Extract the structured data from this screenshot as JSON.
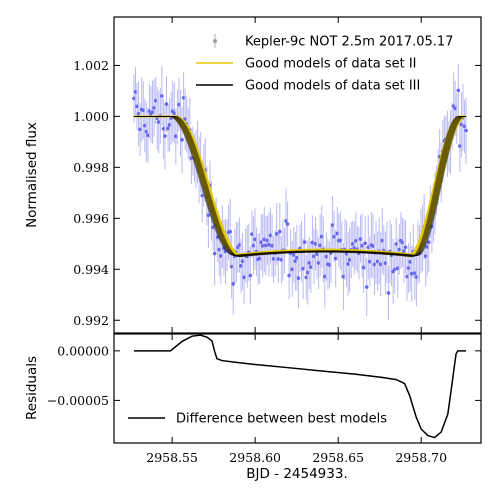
{
  "chart_data": [
    {
      "type": "scatter",
      "panel": "top",
      "title": "",
      "xlabel": "",
      "ylabel": "Normalised flux",
      "xlim": [
        2958.515,
        2958.736
      ],
      "ylim": [
        0.9915,
        1.0039
      ],
      "xticks": [
        2958.55,
        2958.6,
        2958.65,
        2958.7
      ],
      "xtick_labels": [
        "",
        "",
        "",
        ""
      ],
      "yticks": [
        0.992,
        0.994,
        0.996,
        0.998,
        1.0,
        1.002
      ],
      "ytick_labels": [
        "0.992",
        "0.994",
        "0.996",
        "0.998",
        "1.000",
        "1.002"
      ],
      "legend_position": "top-right",
      "grid": false,
      "observation": {
        "name": "Kepler-9c NOT 2.5m 2017.05.17",
        "x_start": 2958.527,
        "x_end": 2958.727,
        "count": 215,
        "typical_error": 0.0011,
        "point_color": "#6666ee",
        "errorbar_color": "#b8b8f4"
      },
      "models": [
        {
          "name": "Good models of data set II",
          "color": "#e6c800",
          "t1": 2958.5506,
          "t2": 2958.5905,
          "t3": 2958.694,
          "t4": 2958.725,
          "depth": 0.00545,
          "tilt": 0.0002
        },
        {
          "name": "Good models of data set III",
          "color": "#000000",
          "t1": 2958.55,
          "t2": 2958.589,
          "t3": 2958.696,
          "t4": 2958.7242,
          "depth": 0.00548,
          "tilt": 0.00018
        }
      ]
    },
    {
      "type": "line",
      "panel": "bottom",
      "title": "",
      "xlabel": "BJD - 2454933.",
      "ylabel": "Residuals",
      "xlim": [
        2958.515,
        2958.736
      ],
      "ylim": [
        -9.3e-05,
        1.7e-05
      ],
      "xticks": [
        2958.55,
        2958.6,
        2958.65,
        2958.7
      ],
      "xtick_labels": [
        "2958.55",
        "2958.60",
        "2958.65",
        "2958.70"
      ],
      "yticks": [
        0.0,
        -5e-05
      ],
      "ytick_labels": [
        "0.00000",
        "−0.00005"
      ],
      "legend_position": "bottom-left",
      "grid": false,
      "series": [
        {
          "name": "Difference between best models",
          "color": "#000000",
          "x": [
            2958.527,
            2958.549,
            2958.556,
            2958.562,
            2958.567,
            2958.571,
            2958.574,
            2958.5755,
            2958.577,
            2958.58,
            2958.59,
            2958.6,
            2958.62,
            2958.64,
            2958.66,
            2958.675,
            2958.685,
            2958.69,
            2958.693,
            2958.697,
            2958.7,
            2958.704,
            2958.708,
            2958.712,
            2958.716,
            2958.718,
            2958.72,
            2958.721,
            2958.722,
            2958.724,
            2958.727
          ],
          "y": [
            0.0,
            0.0,
            9.5e-06,
            1.48e-05,
            1.58e-05,
            1.38e-05,
            1e-05,
            0.0,
            -7.9e-06,
            -9.8e-06,
            -1.19e-05,
            -1.38e-05,
            -1.7e-05,
            -2.03e-05,
            -2.35e-05,
            -2.65e-05,
            -2.9e-05,
            -3.3e-05,
            -4.5e-05,
            -6.7e-05,
            -7.9e-05,
            -8.55e-05,
            -8.75e-05,
            -8.2e-05,
            -6.4e-05,
            -4e-05,
            -1.5e-05,
            -3e-06,
            0.0,
            0.0,
            0.0
          ]
        }
      ]
    }
  ]
}
